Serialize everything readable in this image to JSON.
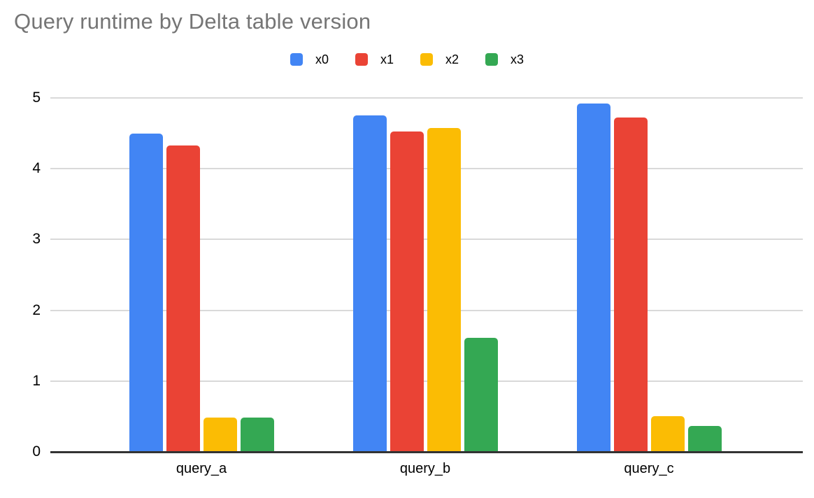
{
  "chart_data": {
    "type": "bar",
    "title": "Query runtime by Delta table version",
    "categories": [
      "query_a",
      "query_b",
      "query_c"
    ],
    "series": [
      {
        "name": "x0",
        "color": "#4285F4",
        "values": [
          4.5,
          4.75,
          4.92
        ]
      },
      {
        "name": "x1",
        "color": "#EA4335",
        "values": [
          4.33,
          4.53,
          4.72
        ]
      },
      {
        "name": "x2",
        "color": "#FBBC04",
        "values": [
          0.48,
          4.58,
          0.5
        ]
      },
      {
        "name": "x3",
        "color": "#34A853",
        "values": [
          0.48,
          1.61,
          0.37
        ]
      }
    ],
    "xlabel": "",
    "ylabel": "",
    "ylim": [
      0,
      5
    ],
    "yticks": [
      0,
      1,
      2,
      3,
      4,
      5
    ],
    "grid": true,
    "legend_position": "top",
    "colors": {
      "title": "#757575",
      "grid": "#d9d9d9",
      "axis_line": "#333333",
      "axis_text": "#000000",
      "background": "#ffffff"
    }
  }
}
